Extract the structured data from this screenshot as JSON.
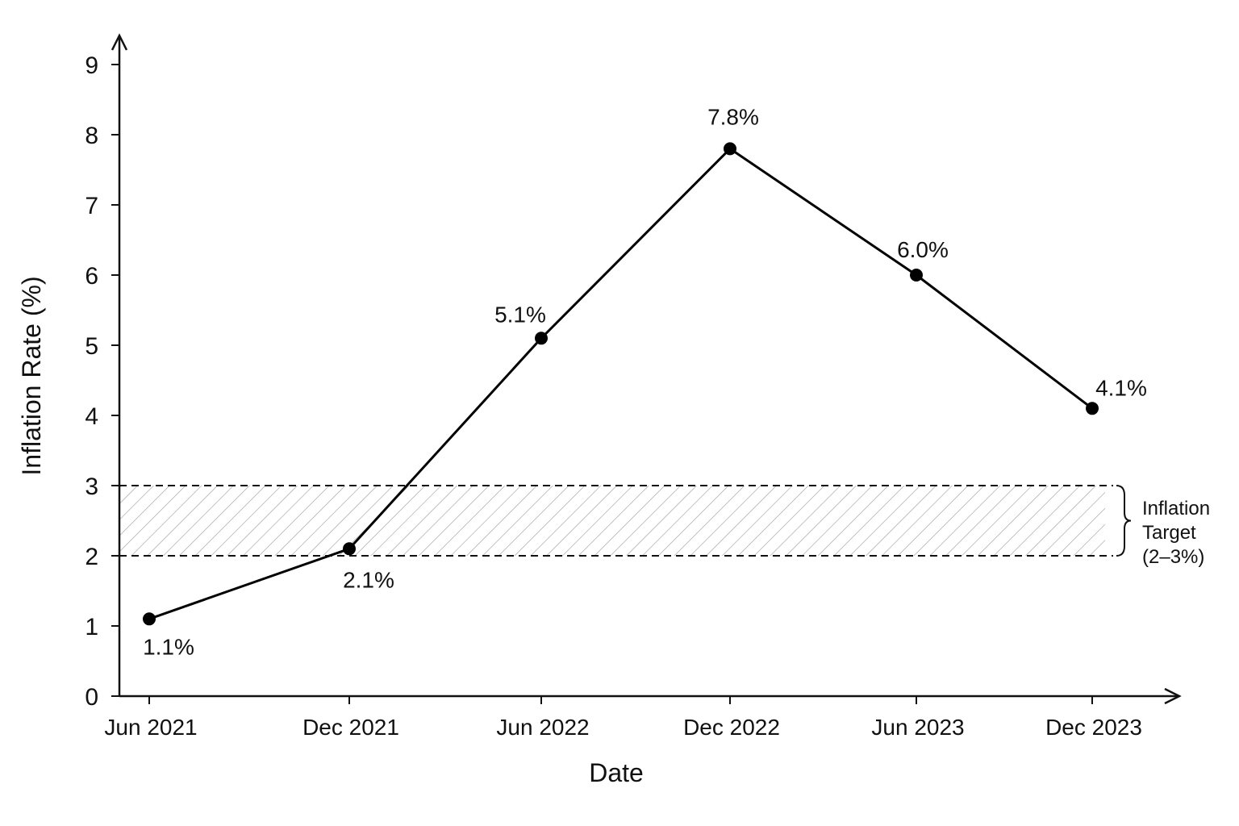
{
  "chart_data": {
    "type": "line",
    "title": "",
    "xlabel": "Date",
    "ylabel": "Inflation Rate (%)",
    "categories": [
      "Jun 2021",
      "Dec 2021",
      "Jun 2022",
      "Dec 2022",
      "Jun 2023",
      "Dec 2023"
    ],
    "series": [
      {
        "values": [
          1.1,
          2.1,
          5.1,
          7.8,
          6.0,
          4.1
        ],
        "labels": [
          "1.1%",
          "2.1%",
          "5.1%",
          "7.8%",
          "6.0%",
          "4.1%"
        ],
        "color": "#000000"
      }
    ],
    "ylim": [
      0,
      9
    ],
    "yticks": [
      "0",
      "1",
      "2",
      "3",
      "4",
      "5",
      "6",
      "7",
      "8",
      "9"
    ],
    "grid": false,
    "target_band": {
      "range": [
        2,
        3
      ],
      "label_lines": [
        "Inflation",
        "Target",
        "(2–3%)"
      ]
    }
  }
}
